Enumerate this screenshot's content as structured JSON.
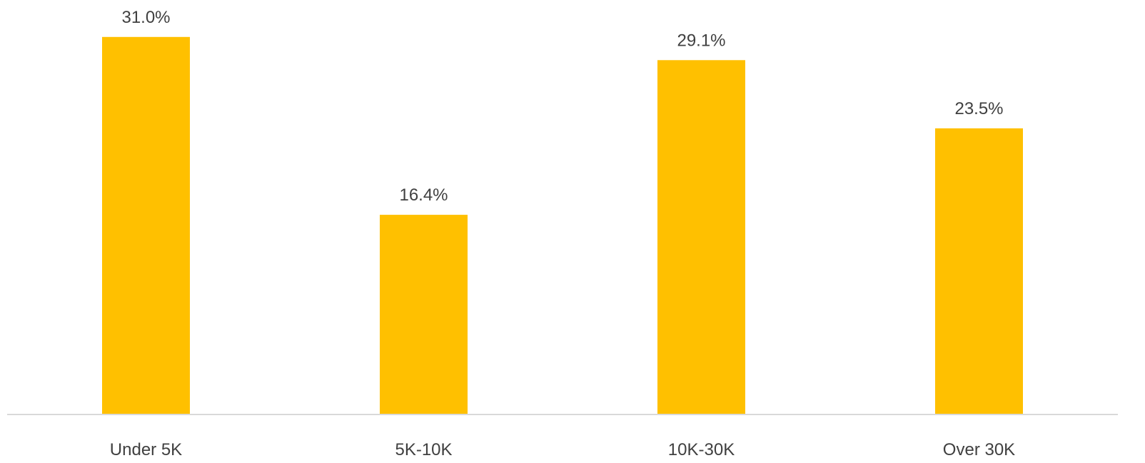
{
  "chart_data": {
    "type": "bar",
    "categories": [
      "Under 5K",
      "5K-10K",
      "10K-30K",
      "Over 30K"
    ],
    "values": [
      31.0,
      16.4,
      29.1,
      23.5
    ],
    "value_labels": [
      "31.0%",
      "16.4%",
      "29.1%",
      "23.5%"
    ],
    "unit": "%",
    "ylim": [
      0,
      33
    ],
    "grid": false,
    "legend": "none",
    "bar_color": "#FFC000",
    "axis_color": "#D9D9D9",
    "label_color": "#404040"
  }
}
